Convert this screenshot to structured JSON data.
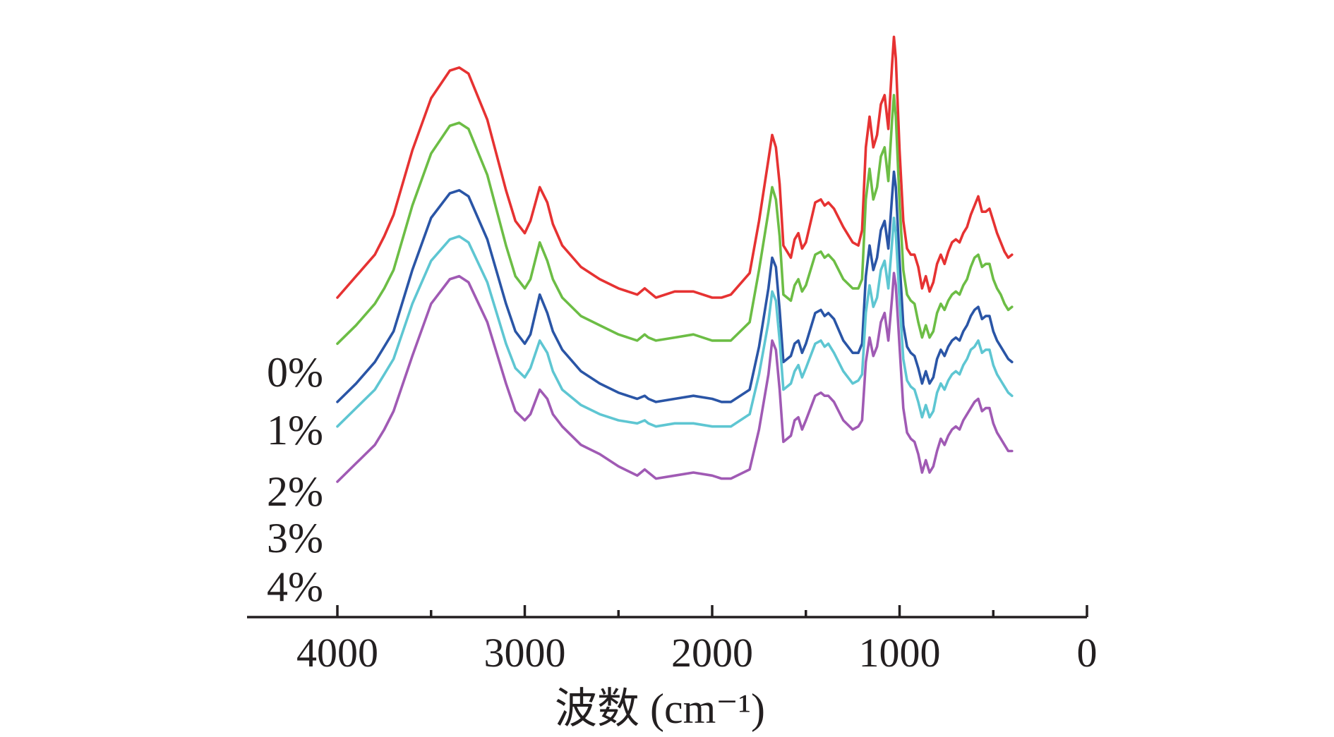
{
  "chart_data": {
    "type": "line",
    "title": "",
    "xlabel": "波数 (cm⁻¹)",
    "ylabel": "",
    "x_reversed": true,
    "xlim": [
      4500,
      0
    ],
    "ylim": [
      0,
      18
    ],
    "x_ticks": [
      "4000",
      "3000",
      "2000",
      "1000",
      "0"
    ],
    "x_tick_values": [
      4000,
      3000,
      2000,
      1000,
      0
    ],
    "grid": false,
    "legend": "left of curves (series labels)",
    "x": [
      4000,
      3900,
      3800,
      3750,
      3700,
      3600,
      3500,
      3400,
      3350,
      3300,
      3200,
      3100,
      3050,
      3000,
      2970,
      2920,
      2880,
      2850,
      2800,
      2700,
      2600,
      2500,
      2400,
      2360,
      2340,
      2300,
      2200,
      2100,
      2000,
      1950,
      1900,
      1800,
      1750,
      1700,
      1680,
      1660,
      1640,
      1620,
      1580,
      1560,
      1540,
      1520,
      1500,
      1450,
      1420,
      1400,
      1380,
      1350,
      1300,
      1250,
      1220,
      1200,
      1180,
      1160,
      1140,
      1120,
      1100,
      1080,
      1060,
      1040,
      1030,
      1020,
      1000,
      980,
      960,
      940,
      920,
      900,
      880,
      860,
      840,
      820,
      800,
      780,
      760,
      740,
      720,
      700,
      680,
      660,
      640,
      620,
      600,
      580,
      560,
      540,
      520,
      500,
      480,
      460,
      440,
      420,
      400
    ],
    "series": [
      {
        "name": "0%",
        "color": "#e63232",
        "values": [
          10.0,
          10.7,
          11.4,
          12.0,
          12.7,
          14.8,
          16.5,
          17.4,
          17.5,
          17.3,
          15.8,
          13.5,
          12.5,
          12.1,
          12.5,
          13.6,
          13.1,
          12.4,
          11.7,
          11.0,
          10.6,
          10.3,
          10.1,
          10.3,
          10.2,
          10.0,
          10.2,
          10.2,
          10.0,
          10.0,
          10.1,
          10.8,
          12.5,
          14.5,
          15.3,
          14.9,
          13.7,
          11.7,
          11.3,
          11.9,
          12.1,
          11.6,
          11.8,
          13.1,
          13.2,
          13.0,
          13.1,
          12.9,
          12.3,
          11.8,
          11.7,
          12.2,
          14.9,
          15.9,
          14.9,
          15.3,
          16.3,
          16.6,
          15.5,
          17.6,
          18.5,
          17.8,
          14.8,
          12.5,
          11.6,
          11.4,
          11.4,
          11.0,
          10.3,
          10.7,
          10.2,
          10.5,
          11.1,
          11.4,
          11.1,
          11.5,
          11.8,
          11.9,
          11.8,
          12.1,
          12.3,
          12.7,
          13.0,
          13.3,
          12.8,
          12.8,
          12.9,
          12.5,
          12.1,
          11.8,
          11.5,
          11.3,
          11.4
        ]
      },
      {
        "name": "1%",
        "color": "#6cbd45",
        "values": [
          8.5,
          9.1,
          9.8,
          10.3,
          10.9,
          13.0,
          14.7,
          15.6,
          15.7,
          15.5,
          14.0,
          11.7,
          10.7,
          10.3,
          10.6,
          11.8,
          11.2,
          10.6,
          10.0,
          9.4,
          9.1,
          8.8,
          8.6,
          8.8,
          8.7,
          8.6,
          8.7,
          8.8,
          8.6,
          8.6,
          8.6,
          9.2,
          10.9,
          12.8,
          13.6,
          13.2,
          12.0,
          10.1,
          9.9,
          10.4,
          10.6,
          10.2,
          10.4,
          11.4,
          11.5,
          11.3,
          11.4,
          11.2,
          10.6,
          10.3,
          10.3,
          10.6,
          13.2,
          14.2,
          13.2,
          13.6,
          14.6,
          14.9,
          13.8,
          15.8,
          16.6,
          15.9,
          13.1,
          10.9,
          10.1,
          9.9,
          9.8,
          9.2,
          8.7,
          9.1,
          8.7,
          8.9,
          9.5,
          9.8,
          9.6,
          9.9,
          10.1,
          10.2,
          10.1,
          10.4,
          10.6,
          11.0,
          11.3,
          11.4,
          11.0,
          11.1,
          11.1,
          10.6,
          10.3,
          10.1,
          9.8,
          9.6,
          9.7
        ]
      },
      {
        "name": "2%",
        "color": "#2a55a6",
        "values": [
          6.6,
          7.2,
          7.9,
          8.4,
          8.9,
          10.9,
          12.6,
          13.4,
          13.5,
          13.3,
          11.9,
          9.8,
          8.9,
          8.5,
          8.8,
          10.1,
          9.5,
          8.9,
          8.3,
          7.6,
          7.2,
          6.9,
          6.7,
          6.8,
          6.7,
          6.6,
          6.7,
          6.8,
          6.7,
          6.6,
          6.6,
          7.0,
          8.4,
          10.3,
          11.3,
          11.0,
          9.6,
          7.9,
          8.1,
          8.5,
          8.6,
          8.2,
          8.5,
          9.5,
          9.6,
          9.4,
          9.5,
          9.3,
          8.6,
          8.2,
          8.2,
          8.5,
          10.7,
          11.7,
          10.9,
          11.3,
          12.2,
          12.5,
          11.6,
          13.3,
          14.1,
          13.6,
          11.2,
          9.1,
          8.4,
          8.2,
          8.1,
          7.7,
          7.2,
          7.6,
          7.2,
          7.4,
          8.0,
          8.3,
          8.1,
          8.4,
          8.6,
          8.7,
          8.6,
          8.9,
          9.1,
          9.4,
          9.6,
          9.7,
          9.3,
          9.4,
          9.4,
          8.9,
          8.6,
          8.4,
          8.2,
          8.0,
          7.9
        ]
      },
      {
        "name": "3%",
        "color": "#5ec6d2",
        "values": [
          5.8,
          6.4,
          7.0,
          7.5,
          8.0,
          9.8,
          11.2,
          11.9,
          12.0,
          11.8,
          10.5,
          8.5,
          7.7,
          7.4,
          7.7,
          8.6,
          8.2,
          7.6,
          7.0,
          6.5,
          6.2,
          6.0,
          5.9,
          6.0,
          5.9,
          5.8,
          5.9,
          5.9,
          5.8,
          5.8,
          5.8,
          6.2,
          7.5,
          9.2,
          10.2,
          9.9,
          8.6,
          7.0,
          7.2,
          7.6,
          7.8,
          7.4,
          7.7,
          8.5,
          8.6,
          8.4,
          8.5,
          8.2,
          7.6,
          7.2,
          7.3,
          7.5,
          9.5,
          10.4,
          9.7,
          10.0,
          10.9,
          11.2,
          10.3,
          11.8,
          12.6,
          12.1,
          9.9,
          8.0,
          7.3,
          7.1,
          7.0,
          6.6,
          6.1,
          6.5,
          6.1,
          6.3,
          6.9,
          7.2,
          7.0,
          7.3,
          7.5,
          7.6,
          7.5,
          7.8,
          8.0,
          8.3,
          8.4,
          8.6,
          8.2,
          8.3,
          8.3,
          7.8,
          7.5,
          7.3,
          7.1,
          6.9,
          6.8
        ]
      },
      {
        "name": "4%",
        "color": "#a05ab4",
        "values": [
          4.0,
          4.6,
          5.2,
          5.7,
          6.3,
          8.1,
          9.8,
          10.6,
          10.7,
          10.5,
          9.2,
          7.2,
          6.3,
          6.0,
          6.2,
          7.0,
          6.7,
          6.2,
          5.8,
          5.2,
          4.9,
          4.5,
          4.2,
          4.4,
          4.3,
          4.1,
          4.2,
          4.3,
          4.2,
          4.1,
          4.1,
          4.4,
          5.7,
          7.5,
          8.6,
          8.3,
          7.0,
          5.3,
          5.5,
          6.0,
          6.1,
          5.7,
          6.0,
          6.8,
          6.9,
          6.8,
          6.8,
          6.6,
          6.0,
          5.7,
          5.8,
          6.0,
          7.9,
          8.7,
          8.1,
          8.4,
          9.2,
          9.5,
          8.6,
          10.0,
          10.8,
          10.4,
          8.4,
          6.4,
          5.6,
          5.4,
          5.3,
          4.9,
          4.3,
          4.7,
          4.3,
          4.5,
          5.0,
          5.4,
          5.2,
          5.5,
          5.7,
          5.8,
          5.7,
          6.0,
          6.2,
          6.4,
          6.6,
          6.7,
          6.3,
          6.4,
          6.4,
          5.9,
          5.6,
          5.4,
          5.2,
          5.0,
          5.0
        ]
      }
    ]
  }
}
